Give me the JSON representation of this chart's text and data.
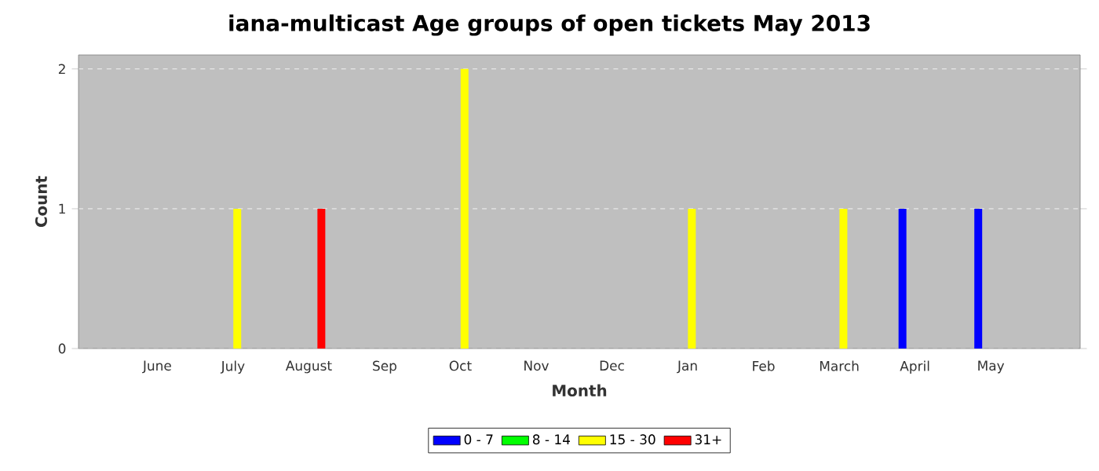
{
  "chart_data": {
    "type": "bar",
    "title": "iana-multicast Age groups of open tickets May 2013",
    "xlabel": "Month",
    "ylabel": "Count",
    "categories": [
      "June",
      "July",
      "August",
      "Sep",
      "Oct",
      "Nov",
      "Dec",
      "Jan",
      "Feb",
      "March",
      "April",
      "May"
    ],
    "series": [
      {
        "name": "0 - 7",
        "color": "#0000ff",
        "values": [
          0,
          0,
          0,
          0,
          0,
          0,
          0,
          0,
          0,
          0,
          1,
          1
        ]
      },
      {
        "name": "8 - 14",
        "color": "#00ff00",
        "values": [
          0,
          0,
          0,
          0,
          0,
          0,
          0,
          0,
          0,
          0,
          0,
          0
        ]
      },
      {
        "name": "15 - 30",
        "color": "#ffff00",
        "values": [
          0,
          1,
          0,
          0,
          2,
          0,
          0,
          1,
          0,
          1,
          0,
          0
        ]
      },
      {
        "name": "31+",
        "color": "#ff0000",
        "values": [
          0,
          0,
          1,
          0,
          0,
          0,
          0,
          0,
          0,
          0,
          0,
          0
        ]
      }
    ],
    "ylim": [
      0,
      2.1
    ],
    "yticks": [
      0,
      1,
      2
    ],
    "grid": "y",
    "legend": "bottom"
  }
}
